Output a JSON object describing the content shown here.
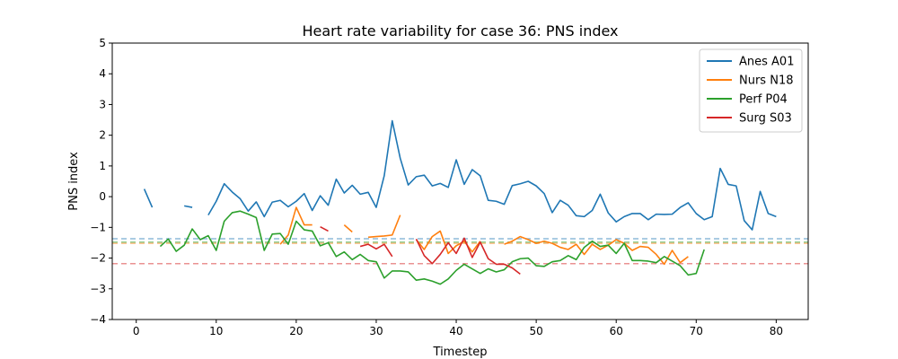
{
  "chart_data": {
    "type": "line",
    "title": "Heart rate variability for case 36: PNS index",
    "xlabel": "Timestep",
    "ylabel": "PNS index",
    "xlim": [
      -3,
      84
    ],
    "ylim": [
      -4,
      5
    ],
    "xticks": [
      0,
      10,
      20,
      30,
      40,
      50,
      60,
      70,
      80
    ],
    "yticks": [
      -4,
      -3,
      -2,
      -1,
      0,
      1,
      2,
      3,
      4,
      5
    ],
    "grid": false,
    "legend_position": "top-right",
    "series": [
      {
        "name": "Anes A01",
        "color": "#1f77b4",
        "baseline": -1.37,
        "x": [
          1,
          2,
          3,
          4,
          5,
          6,
          7,
          8,
          9,
          10,
          11,
          12,
          13,
          14,
          15,
          16,
          17,
          18,
          19,
          20,
          21,
          22,
          23,
          24,
          25,
          26,
          27,
          28,
          29,
          30,
          31,
          32,
          33,
          34,
          35,
          36,
          37,
          38,
          39,
          40,
          41,
          42,
          43,
          44,
          45,
          46,
          47,
          48,
          49,
          50,
          51,
          52,
          53,
          54,
          55,
          56,
          57,
          58,
          59,
          60,
          61,
          62,
          63,
          64,
          65,
          66,
          67,
          68,
          69,
          70,
          71,
          72,
          73,
          74,
          75,
          76,
          77,
          78,
          79,
          80
        ],
        "y": [
          0.25,
          -0.35,
          null,
          null,
          null,
          -0.3,
          -0.35,
          null,
          -0.6,
          -0.15,
          0.42,
          0.15,
          -0.07,
          -0.47,
          -0.17,
          -0.65,
          -0.18,
          -0.12,
          -0.33,
          -0.15,
          0.1,
          -0.45,
          0.03,
          -0.28,
          0.57,
          0.12,
          0.37,
          0.08,
          0.14,
          -0.35,
          0.68,
          2.47,
          1.25,
          0.38,
          0.65,
          0.7,
          0.35,
          0.43,
          0.3,
          1.2,
          0.4,
          0.88,
          0.68,
          -0.12,
          -0.15,
          -0.25,
          0.36,
          0.42,
          0.5,
          0.35,
          0.1,
          -0.52,
          -0.12,
          -0.28,
          -0.62,
          -0.65,
          -0.45,
          0.08,
          -0.53,
          -0.82,
          -0.65,
          -0.55,
          -0.55,
          -0.75,
          -0.57,
          -0.58,
          -0.57,
          -0.35,
          -0.2,
          -0.55,
          -0.75,
          -0.65,
          0.92,
          0.4,
          0.35,
          -0.78,
          -1.08,
          0.17,
          -0.55,
          -0.65
        ]
      },
      {
        "name": "Nurs N18",
        "color": "#ff7f0e",
        "baseline": -1.52,
        "x": [
          18,
          19,
          20,
          21,
          22,
          23,
          24,
          25,
          26,
          27,
          28,
          29,
          30,
          31,
          32,
          33,
          34,
          35,
          36,
          37,
          38,
          39,
          40,
          41,
          42,
          43,
          44,
          45,
          46,
          47,
          48,
          49,
          50,
          51,
          52,
          53,
          54,
          55,
          56,
          57,
          58,
          59,
          60,
          61,
          62,
          63,
          64,
          65,
          66,
          67,
          68,
          69
        ],
        "y": [
          -1.55,
          -1.25,
          -0.35,
          -0.92,
          -0.92,
          null,
          null,
          null,
          -0.92,
          -1.15,
          null,
          -1.32,
          -1.3,
          -1.28,
          -1.25,
          -0.6,
          null,
          -1.4,
          -1.72,
          -1.3,
          -1.12,
          -1.85,
          -1.6,
          -1.45,
          -1.8,
          -1.45,
          null,
          null,
          -1.55,
          -1.45,
          -1.3,
          -1.4,
          -1.52,
          -1.45,
          -1.52,
          -1.65,
          -1.72,
          -1.55,
          -1.88,
          -1.55,
          -1.72,
          -1.58,
          -1.4,
          -1.52,
          -1.75,
          -1.62,
          -1.65,
          -1.88,
          -2.2,
          -1.75,
          -2.15,
          -1.95
        ]
      },
      {
        "name": "Perf P04",
        "color": "#2ca02c",
        "baseline": -1.48,
        "x": [
          3,
          4,
          5,
          6,
          7,
          8,
          9,
          10,
          11,
          12,
          13,
          14,
          15,
          16,
          17,
          18,
          19,
          20,
          21,
          22,
          23,
          24,
          25,
          26,
          27,
          28,
          29,
          30,
          31,
          32,
          33,
          34,
          35,
          36,
          37,
          38,
          39,
          40,
          41,
          42,
          43,
          44,
          45,
          46,
          47,
          48,
          49,
          50,
          51,
          52,
          53,
          54,
          55,
          56,
          57,
          58,
          59,
          60,
          61,
          62,
          63,
          64,
          65,
          66,
          67,
          68,
          69,
          70,
          71
        ],
        "y": [
          -1.62,
          -1.38,
          -1.78,
          -1.58,
          -1.05,
          -1.4,
          -1.27,
          -1.75,
          -0.8,
          -0.52,
          -0.47,
          -0.57,
          -0.68,
          -1.75,
          -1.22,
          -1.2,
          -1.55,
          -0.8,
          -1.08,
          -1.12,
          -1.6,
          -1.5,
          -1.95,
          -1.8,
          -2.05,
          -1.88,
          -2.08,
          -2.12,
          -2.65,
          -2.42,
          -2.42,
          -2.45,
          -2.72,
          -2.68,
          -2.75,
          -2.85,
          -2.68,
          -2.4,
          -2.2,
          -2.35,
          -2.5,
          -2.35,
          -2.45,
          -2.38,
          -2.12,
          -2.02,
          -2.0,
          -2.25,
          -2.27,
          -2.12,
          -2.08,
          -1.92,
          -2.05,
          -1.65,
          -1.45,
          -1.62,
          -1.58,
          -1.85,
          -1.52,
          -2.08,
          -2.08,
          -2.1,
          -2.15,
          -1.95,
          -2.1,
          -2.25,
          -2.55,
          -2.5,
          -1.72
        ]
      },
      {
        "name": "Surg S03",
        "color": "#d62728",
        "baseline": -2.18,
        "x": [
          23,
          24,
          25,
          26,
          27,
          28,
          29,
          30,
          31,
          32,
          33,
          34,
          35,
          36,
          37,
          38,
          39,
          40,
          41,
          42,
          43,
          44,
          45,
          46,
          47,
          48
        ],
        "y": [
          -0.98,
          -1.12,
          null,
          null,
          null,
          -1.62,
          -1.55,
          -1.7,
          -1.55,
          -1.95,
          null,
          null,
          -1.38,
          -1.92,
          -2.18,
          -1.88,
          -1.5,
          -1.85,
          -1.35,
          -1.98,
          -1.48,
          -2.02,
          -2.2,
          -2.2,
          -2.32,
          -2.52
        ]
      }
    ]
  }
}
